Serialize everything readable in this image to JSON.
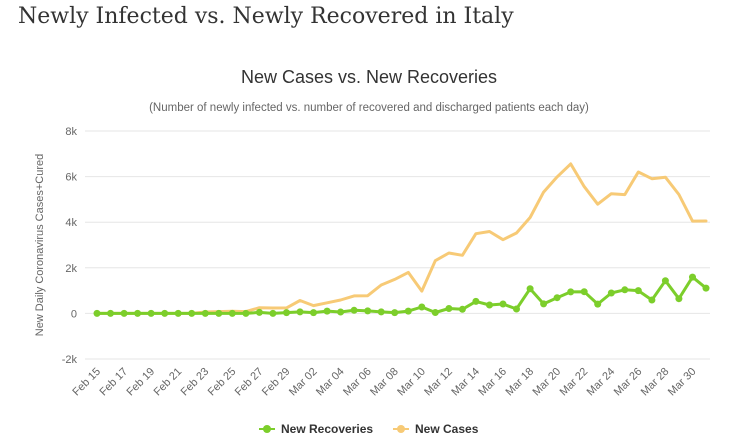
{
  "page": {
    "heading": "Newly Infected vs. Newly Recovered in Italy"
  },
  "chart_data": {
    "type": "line",
    "title": "New Cases vs. New Recoveries",
    "subtitle": "(Number of newly infected vs. number of recovered and discharged patients each day)",
    "ylabel": "New Daily Coronavirus Cases+Cured",
    "xlabel": "",
    "ylim": [
      -2000,
      8000
    ],
    "yticks": [
      -2000,
      0,
      2000,
      4000,
      6000,
      8000
    ],
    "ytick_labels": [
      "-2k",
      "0",
      "2k",
      "4k",
      "6k",
      "8k"
    ],
    "x": [
      "Feb 15",
      "Feb 16",
      "Feb 17",
      "Feb 18",
      "Feb 19",
      "Feb 20",
      "Feb 21",
      "Feb 22",
      "Feb 23",
      "Feb 24",
      "Feb 25",
      "Feb 26",
      "Feb 27",
      "Feb 28",
      "Feb 29",
      "Mar 01",
      "Mar 02",
      "Mar 03",
      "Mar 04",
      "Mar 05",
      "Mar 06",
      "Mar 07",
      "Mar 08",
      "Mar 09",
      "Mar 10",
      "Mar 11",
      "Mar 12",
      "Mar 13",
      "Mar 14",
      "Mar 15",
      "Mar 16",
      "Mar 17",
      "Mar 18",
      "Mar 19",
      "Mar 20",
      "Mar 21",
      "Mar 22",
      "Mar 23",
      "Mar 24",
      "Mar 25",
      "Mar 26",
      "Mar 27",
      "Mar 28",
      "Mar 29",
      "Mar 30",
      "Mar 31"
    ],
    "xtick_labels": [
      "Feb 15",
      "Feb 17",
      "Feb 19",
      "Feb 21",
      "Feb 23",
      "Feb 25",
      "Feb 27",
      "Feb 29",
      "Mar 02",
      "Mar 04",
      "Mar 06",
      "Mar 08",
      "Mar 10",
      "Mar 12",
      "Mar 14",
      "Mar 16",
      "Mar 18",
      "Mar 20",
      "Mar 22",
      "Mar 24",
      "Mar 26",
      "Mar 28",
      "Mar 30"
    ],
    "grid": true,
    "legend_position": "bottom-center",
    "series": [
      {
        "name": "New Recoveries",
        "color": "#7cce2b",
        "markers": true,
        "values": [
          0,
          0,
          0,
          0,
          0,
          0,
          0,
          0,
          0,
          0,
          0,
          0,
          45,
          1,
          37,
          66,
          33,
          102,
          62,
          138,
          109,
          66,
          33,
          102,
          280,
          41,
          213,
          181,
          527,
          369,
          414,
          192,
          1084,
          415,
          689,
          943,
          952,
          408,
          894,
          1036,
          999,
          589,
          1434,
          646,
          1590,
          1109
        ]
      },
      {
        "name": "New Cases",
        "color": "#f7ca76",
        "markers": false,
        "values": [
          0,
          0,
          0,
          0,
          0,
          0,
          0,
          0,
          62,
          77,
          93,
          78,
          250,
          238,
          240,
          566,
          342,
          466,
          587,
          769,
          778,
          1247,
          1492,
          1797,
          977,
          2313,
          2651,
          2547,
          3497,
          3590,
          3233,
          3526,
          4207,
          5322,
          5986,
          6557,
          5560,
          4789,
          5249,
          5210,
          6203,
          5909,
          5974,
          5217,
          4050,
          4053
        ]
      }
    ]
  }
}
